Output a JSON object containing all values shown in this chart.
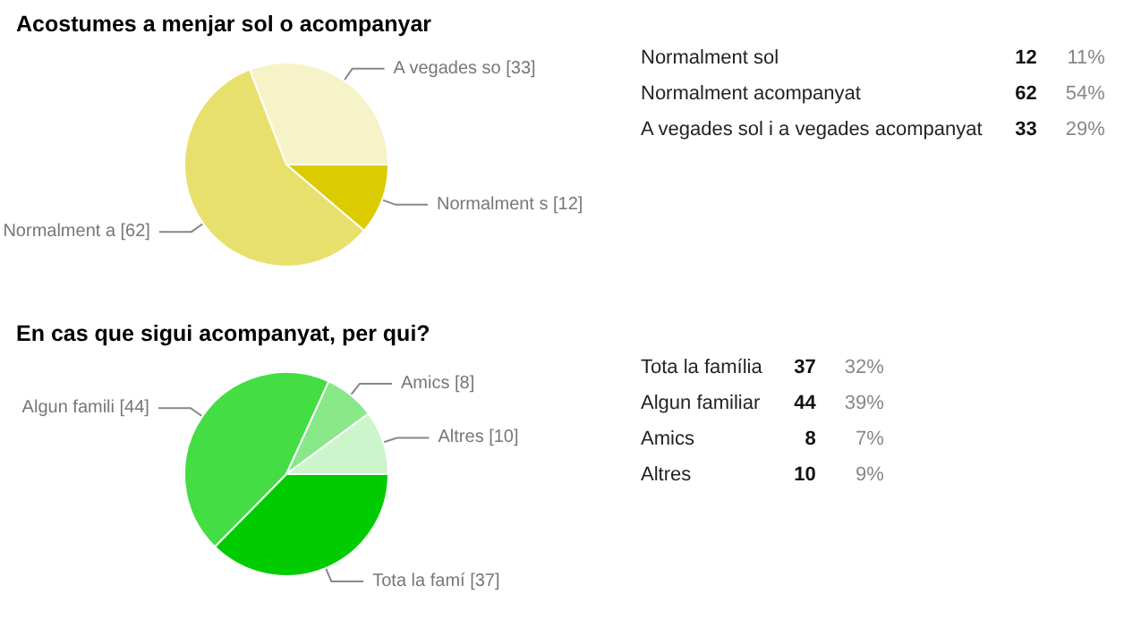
{
  "chart_data": [
    {
      "type": "pie",
      "title": "Acostumes a menjar sol o acompanyar",
      "categories": [
        "Normalment s",
        "Normalment a",
        "A vegades so"
      ],
      "values": [
        12,
        62,
        33
      ],
      "colors": [
        "#dccb00",
        "#e8e06c",
        "#f6f3c8"
      ],
      "value_labels": [
        "[12]",
        "[62]",
        "[33]"
      ],
      "legend": false
    },
    {
      "type": "other",
      "categories": [
        "Normalment sol",
        "Normalment acompanyat",
        "A vegades sol i a vegades acompanyat"
      ],
      "values": [
        12,
        62,
        33
      ],
      "annotations": [
        "11%",
        "54%",
        "29%"
      ],
      "data_labels": true
    },
    {
      "type": "pie",
      "title": "En cas que sigui acompanyat, per qui?",
      "categories": [
        "Tota la famí",
        "Algun famili",
        "Amics",
        "Altres"
      ],
      "values": [
        37,
        44,
        8,
        10
      ],
      "colors": [
        "#00cc00",
        "#44dd44",
        "#88e888",
        "#ccf5cc"
      ],
      "value_labels": [
        "[37]",
        "[44]",
        "[8]",
        "[10]"
      ],
      "legend": false
    },
    {
      "type": "other",
      "categories": [
        "Tota la família",
        "Algun familiar",
        "Amics",
        "Altres"
      ],
      "values": [
        37,
        44,
        8,
        10
      ],
      "annotations": [
        "32%",
        "39%",
        "7%",
        "9%"
      ],
      "data_labels": true
    }
  ]
}
